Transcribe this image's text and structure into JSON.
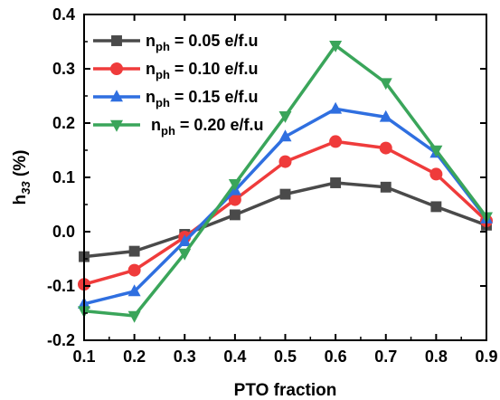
{
  "chart_data": {
    "type": "line",
    "xlabel": "PTO fraction",
    "ylabel": {
      "main": "h",
      "sub": "33",
      "suffix": " (%)"
    },
    "xlim": [
      0.1,
      0.9
    ],
    "ylim": [
      -0.2,
      0.4
    ],
    "x_ticks": [
      "0.1",
      "0.2",
      "0.3",
      "0.4",
      "0.5",
      "0.6",
      "0.7",
      "0.8",
      "0.9"
    ],
    "y_ticks": [
      "-0.2",
      "-0.1",
      "0.0",
      "0.1",
      "0.2",
      "0.3",
      "0.4"
    ],
    "x": [
      0.1,
      0.2,
      0.3,
      0.4,
      0.5,
      0.6,
      0.7,
      0.8,
      0.9
    ],
    "legend_position": "top-left",
    "grid": false,
    "series": [
      {
        "name": {
          "main": "n",
          "sub": "ph",
          "suffix": " = 0.05 e/f.u"
        },
        "color": "#4a4a4a",
        "marker": "square",
        "values": [
          -0.046,
          -0.036,
          -0.005,
          0.031,
          0.069,
          0.09,
          0.082,
          0.046,
          0.012
        ]
      },
      {
        "name": {
          "main": "n",
          "sub": "ph",
          "suffix": " = 0.10 e/f.u"
        },
        "color": "#ef3b3b",
        "marker": "circle",
        "values": [
          -0.097,
          -0.071,
          -0.01,
          0.059,
          0.129,
          0.166,
          0.154,
          0.106,
          0.02
        ]
      },
      {
        "name": {
          "main": "n",
          "sub": "ph",
          "suffix": " = 0.15 e/f.u"
        },
        "color": "#2f6fe0",
        "marker": "triangle-up",
        "values": [
          -0.133,
          -0.11,
          -0.018,
          0.076,
          0.175,
          0.226,
          0.211,
          0.145,
          0.024
        ]
      },
      {
        "name": {
          "main": "n",
          "sub": "ph",
          "suffix": " = 0.20 e/f.u"
        },
        "color": "#3aa55a",
        "marker": "triangle-down",
        "values": [
          -0.146,
          -0.155,
          -0.04,
          0.088,
          0.213,
          0.343,
          0.274,
          0.15,
          0.027
        ]
      }
    ]
  }
}
